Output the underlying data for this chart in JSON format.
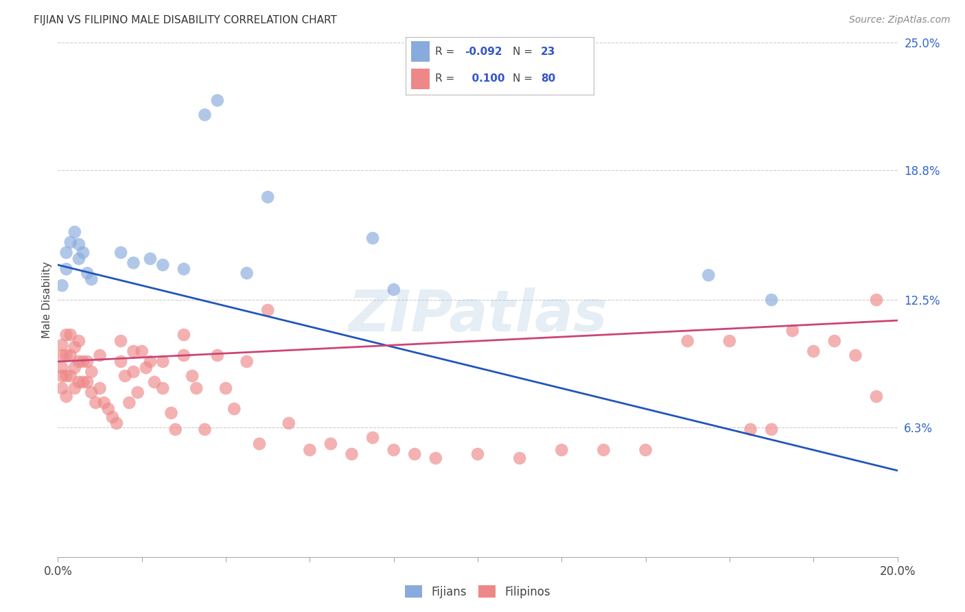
{
  "title": "FIJIAN VS FILIPINO MALE DISABILITY CORRELATION CHART",
  "source": "Source: ZipAtlas.com",
  "ylabel": "Male Disability",
  "xlim": [
    0.0,
    0.2
  ],
  "ylim": [
    0.0,
    0.25
  ],
  "fijian_color": "#88aadd",
  "filipino_color": "#ee8888",
  "fijian_line_color": "#2255bb",
  "filipino_line_color": "#cc4477",
  "background_color": "#ffffff",
  "fijian_R": -0.092,
  "fijian_N": 23,
  "filipino_R": 0.1,
  "filipino_N": 80,
  "fijian_x": [
    0.001,
    0.002,
    0.002,
    0.003,
    0.004,
    0.005,
    0.005,
    0.006,
    0.007,
    0.008,
    0.015,
    0.018,
    0.022,
    0.025,
    0.03,
    0.035,
    0.038,
    0.045,
    0.05,
    0.075,
    0.08,
    0.155,
    0.17
  ],
  "fijian_y": [
    0.132,
    0.14,
    0.148,
    0.153,
    0.158,
    0.145,
    0.152,
    0.148,
    0.138,
    0.135,
    0.148,
    0.143,
    0.145,
    0.142,
    0.14,
    0.215,
    0.222,
    0.138,
    0.175,
    0.155,
    0.13,
    0.137,
    0.125
  ],
  "filipino_x": [
    0.001,
    0.001,
    0.001,
    0.001,
    0.001,
    0.002,
    0.002,
    0.002,
    0.002,
    0.003,
    0.003,
    0.003,
    0.004,
    0.004,
    0.004,
    0.005,
    0.005,
    0.005,
    0.006,
    0.006,
    0.007,
    0.007,
    0.008,
    0.008,
    0.009,
    0.01,
    0.01,
    0.011,
    0.012,
    0.013,
    0.014,
    0.015,
    0.015,
    0.016,
    0.017,
    0.018,
    0.018,
    0.019,
    0.02,
    0.021,
    0.022,
    0.023,
    0.025,
    0.025,
    0.027,
    0.028,
    0.03,
    0.03,
    0.032,
    0.033,
    0.035,
    0.038,
    0.04,
    0.042,
    0.045,
    0.048,
    0.05,
    0.055,
    0.06,
    0.065,
    0.07,
    0.075,
    0.08,
    0.085,
    0.09,
    0.1,
    0.11,
    0.12,
    0.13,
    0.14,
    0.15,
    0.16,
    0.165,
    0.17,
    0.175,
    0.18,
    0.185,
    0.19,
    0.195,
    0.195
  ],
  "filipino_y": [
    0.103,
    0.098,
    0.092,
    0.088,
    0.082,
    0.108,
    0.098,
    0.088,
    0.078,
    0.108,
    0.098,
    0.088,
    0.102,
    0.092,
    0.082,
    0.105,
    0.095,
    0.085,
    0.095,
    0.085,
    0.095,
    0.085,
    0.09,
    0.08,
    0.075,
    0.098,
    0.082,
    0.075,
    0.072,
    0.068,
    0.065,
    0.105,
    0.095,
    0.088,
    0.075,
    0.1,
    0.09,
    0.08,
    0.1,
    0.092,
    0.095,
    0.085,
    0.082,
    0.095,
    0.07,
    0.062,
    0.108,
    0.098,
    0.088,
    0.082,
    0.062,
    0.098,
    0.082,
    0.072,
    0.095,
    0.055,
    0.12,
    0.065,
    0.052,
    0.055,
    0.05,
    0.058,
    0.052,
    0.05,
    0.048,
    0.05,
    0.048,
    0.052,
    0.052,
    0.052,
    0.105,
    0.105,
    0.062,
    0.062,
    0.11,
    0.1,
    0.105,
    0.098,
    0.078,
    0.125
  ]
}
